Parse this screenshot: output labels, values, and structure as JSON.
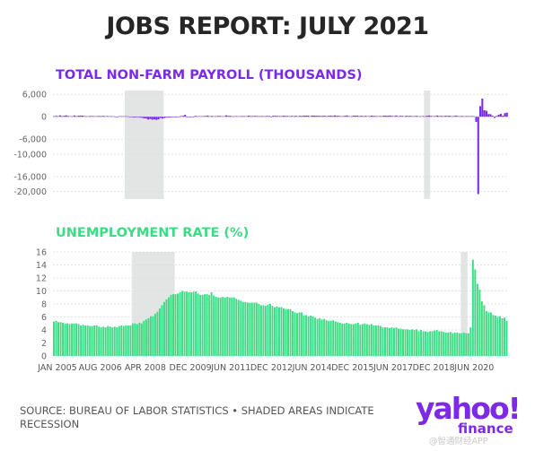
{
  "title": "JOBS REPORT: JULY 2021",
  "source": "SOURCE: BUREAU OF LABOR STATISTICS • SHADED AREAS INDICATE RECESSION",
  "logo": "yahoo!",
  "logo_sub": "finance",
  "watermark": "@智通财经APP",
  "colors": {
    "payroll": "#7c2ae8",
    "unemployment": "#3ddc84",
    "recession": "#e3e4e4",
    "title": "#262626"
  },
  "chart_data": [
    {
      "type": "bar",
      "title": "TOTAL NON-FARM PAYROLL (THOUSANDS)",
      "ylim": [
        -22000,
        7000
      ],
      "yticks": [
        6000,
        0,
        -6000,
        -10000,
        -16000,
        -20000
      ],
      "ytick_labels": [
        "6,000",
        "0",
        "-6,000",
        "-10,000",
        "-16,000",
        "-20,000"
      ],
      "grid": true,
      "recessions": [
        [
          "2007-12",
          "2009-06"
        ],
        [
          "2020-02",
          "2020-04"
        ]
      ],
      "x_start": "2005-01",
      "x_end": "2021-07",
      "series": [
        {
          "values": [
            134,
            239,
            134,
            363,
            175,
            245,
            373,
            196,
            67,
            84,
            337,
            159,
            277,
            315,
            280,
            182,
            23,
            77,
            207,
            184,
            157,
            2,
            210,
            171,
            236,
            90,
            189,
            79,
            143,
            78,
            -34,
            -20,
            88,
            84,
            114,
            98,
            17,
            -84,
            -78,
            -210,
            -185,
            -165,
            -209,
            -266,
            -452,
            -481,
            -743,
            -597,
            -791,
            -703,
            -823,
            -687,
            -349,
            -472,
            -352,
            -210,
            -220,
            -204,
            -1,
            -179,
            -35,
            -13,
            192,
            239,
            516,
            -167,
            -58,
            -51,
            -27,
            241,
            137,
            71,
            70,
            168,
            212,
            322,
            102,
            217,
            106,
            122,
            225,
            203,
            146,
            110,
            376,
            244,
            237,
            88,
            50,
            181,
            72,
            153,
            188,
            160,
            140,
            272,
            190,
            190,
            228,
            193,
            103,
            195,
            166,
            110,
            236,
            182,
            -22,
            257,
            237,
            204,
            188,
            165,
            271,
            210,
            213,
            162,
            225,
            144,
            265,
            102,
            250,
            207,
            305,
            295,
            291,
            145,
            319,
            283,
            264,
            274,
            195,
            229,
            270,
            169,
            227,
            312,
            221,
            350,
            229,
            256,
            162,
            84,
            256,
            336,
            132,
            148,
            253,
            291,
            280,
            173,
            252,
            174,
            234,
            147,
            185,
            285,
            225,
            212,
            133,
            185,
            164,
            292,
            271,
            264,
            325,
            214,
            107,
            347,
            54,
            225,
            211,
            14,
            272,
            189,
            248,
            153,
            175,
            247,
            104,
            162,
            176,
            145,
            255,
            331,
            219,
            103,
            176,
            324,
            182,
            244,
            94,
            257,
            225,
            263,
            137,
            186,
            312,
            192,
            56,
            214,
            103,
            165,
            196,
            113,
            182,
            112,
            -1373,
            -20679,
            2833,
            4846,
            1726,
            1583,
            716,
            680,
            264,
            -306,
            233,
            536,
            785,
            269,
            962,
            1100
          ],
          "color": "#7c2ae8"
        }
      ]
    },
    {
      "type": "bar",
      "title": "UNEMPLOYMENT RATE (%)",
      "ylim": [
        0,
        16
      ],
      "yticks": [
        0,
        2,
        4,
        6,
        8,
        10,
        12,
        14,
        16
      ],
      "grid": true,
      "recessions": [
        [
          "2007-12",
          "2009-06"
        ],
        [
          "2020-02",
          "2020-04"
        ]
      ],
      "x_start": "2005-01",
      "x_end": "2021-07",
      "xtick_labels": [
        "JAN 2005",
        "AUG 2006",
        "APR 2008",
        "DEC 2009",
        "JUN 2011",
        "DEC 2012",
        "JUN 2014",
        "DEC 2015",
        "JUN 2017",
        "DEC 2018",
        "JUN 2020"
      ],
      "xtick_dates": [
        "2005-01",
        "2006-08",
        "2008-04",
        "2009-12",
        "2011-06",
        "2012-12",
        "2014-06",
        "2015-12",
        "2017-06",
        "2018-12",
        "2020-06"
      ],
      "series": [
        {
          "values": [
            5.3,
            5.4,
            5.2,
            5.2,
            5.1,
            5.0,
            5.0,
            4.9,
            5.0,
            5.0,
            5.0,
            4.9,
            4.7,
            4.8,
            4.7,
            4.7,
            4.6,
            4.6,
            4.7,
            4.7,
            4.5,
            4.4,
            4.5,
            4.4,
            4.6,
            4.5,
            4.4,
            4.5,
            4.4,
            4.6,
            4.7,
            4.6,
            4.7,
            4.7,
            4.7,
            5.0,
            5.0,
            4.9,
            5.1,
            5.0,
            5.4,
            5.6,
            5.8,
            6.1,
            6.1,
            6.5,
            6.8,
            7.3,
            7.8,
            8.3,
            8.7,
            9.0,
            9.4,
            9.5,
            9.5,
            9.6,
            9.8,
            10.0,
            9.9,
            9.9,
            9.8,
            9.8,
            9.9,
            9.9,
            9.6,
            9.4,
            9.4,
            9.5,
            9.5,
            9.4,
            9.8,
            9.3,
            9.1,
            9.0,
            9.0,
            9.1,
            9.0,
            9.1,
            9.0,
            9.0,
            9.0,
            8.8,
            8.6,
            8.5,
            8.3,
            8.3,
            8.2,
            8.2,
            8.2,
            8.2,
            8.2,
            8.0,
            7.8,
            7.8,
            7.7,
            7.9,
            8.0,
            7.7,
            7.5,
            7.6,
            7.5,
            7.5,
            7.3,
            7.2,
            7.2,
            7.2,
            6.9,
            6.7,
            6.6,
            6.7,
            6.7,
            6.2,
            6.3,
            6.1,
            6.2,
            6.1,
            5.9,
            5.7,
            5.8,
            5.6,
            5.7,
            5.5,
            5.4,
            5.4,
            5.5,
            5.3,
            5.2,
            5.1,
            5.0,
            5.0,
            5.1,
            5.0,
            4.9,
            4.9,
            5.0,
            5.1,
            4.8,
            4.9,
            5.0,
            4.9,
            4.8,
            4.9,
            4.7,
            4.7,
            4.7,
            4.6,
            4.4,
            4.4,
            4.4,
            4.3,
            4.4,
            4.3,
            4.4,
            4.2,
            4.2,
            4.1,
            4.1,
            4.1,
            4.0,
            4.1,
            4.0,
            4.1,
            3.8,
            4.0,
            3.8,
            3.8,
            3.7,
            3.8,
            3.8,
            3.9,
            4.0,
            3.8,
            3.8,
            3.7,
            3.6,
            3.6,
            3.7,
            3.5,
            3.6,
            3.6,
            3.5,
            3.5,
            3.6,
            3.5,
            3.5,
            4.4,
            14.8,
            13.3,
            11.1,
            10.2,
            8.4,
            7.8,
            6.9,
            6.7,
            6.7,
            6.3,
            6.2,
            6.0,
            6.1,
            5.8,
            5.9,
            5.4
          ],
          "color": "#3ddc84"
        }
      ]
    }
  ]
}
